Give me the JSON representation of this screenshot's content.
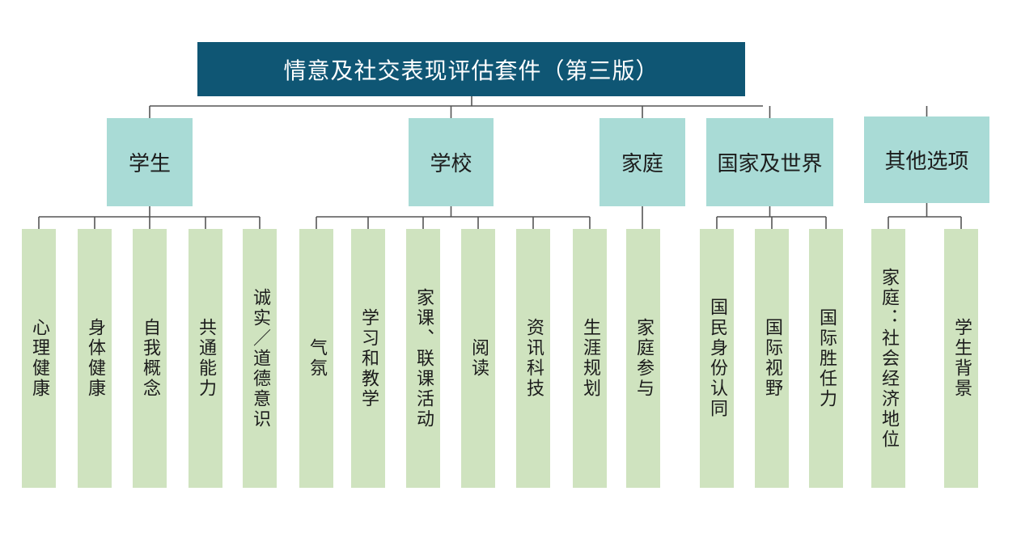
{
  "title": "情意及社交表现评估套件（第三版）",
  "colors": {
    "title_bg": "#0f5674",
    "category_bg": "#a9dbd6",
    "item_bg": "#cfe3bf",
    "line": "#555555"
  },
  "categories": [
    {
      "label": "学生",
      "items": [
        "心理健康",
        "身体健康",
        "自我概念",
        "共通能力",
        "诚实／道德意识"
      ]
    },
    {
      "label": "学校",
      "items": [
        "气氛",
        "学习和教学",
        "家课、联课活动",
        "阅读",
        "资讯科技",
        "生涯规划"
      ]
    },
    {
      "label": "家庭",
      "items": [
        "家庭参与"
      ]
    },
    {
      "label": "国家及世界",
      "items": [
        "国民身份认同",
        "国际视野",
        "国际胜任力"
      ]
    },
    {
      "label": "其他选项",
      "items": [
        "家庭：社会经济地位",
        "学生背景"
      ]
    }
  ]
}
